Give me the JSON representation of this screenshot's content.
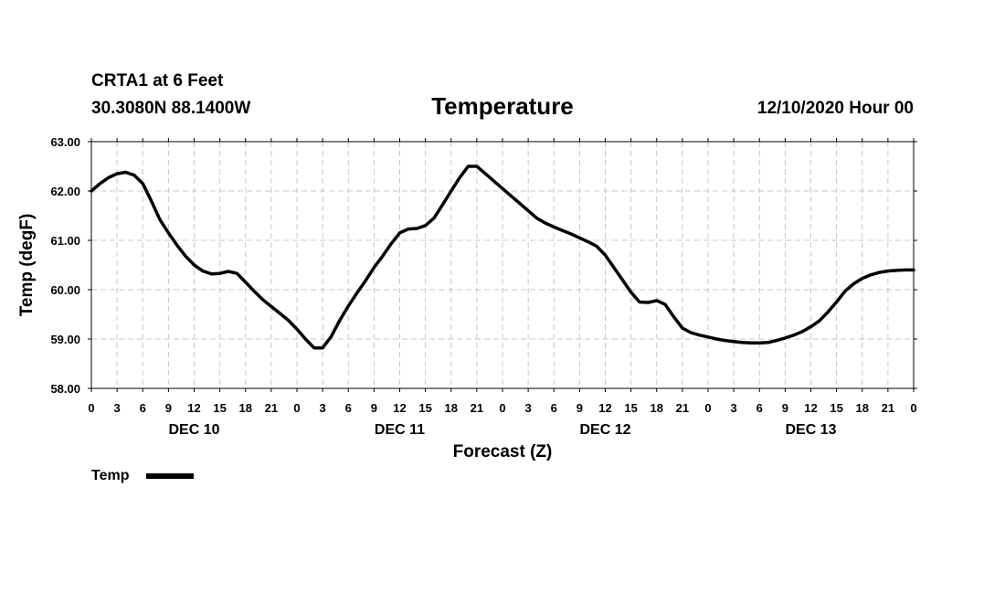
{
  "header": {
    "station": "CRTA1 at 6 Feet",
    "coords": "30.3080N 88.1400W",
    "title": "Temperature",
    "issued": "12/10/2020 Hour 00"
  },
  "legend": {
    "label": "Temp"
  },
  "chart_data": {
    "type": "line",
    "title": "Temperature",
    "xlabel": "Forecast (Z)",
    "ylabel": "Temp (degF)",
    "ylim": [
      58,
      63
    ],
    "xlim": [
      0,
      96
    ],
    "ytick_labels": [
      "58.00",
      "59.00",
      "60.00",
      "61.00",
      "62.00",
      "63.00"
    ],
    "xtick_labels": [
      "0",
      "3",
      "6",
      "9",
      "12",
      "15",
      "18",
      "21",
      "0",
      "3",
      "6",
      "9",
      "12",
      "15",
      "18",
      "21",
      "0",
      "3",
      "6",
      "9",
      "12",
      "15",
      "18",
      "21",
      "0",
      "3",
      "6",
      "9",
      "12",
      "15",
      "18",
      "21",
      "0"
    ],
    "day_labels": [
      "DEC 10",
      "DEC 11",
      "DEC 12",
      "DEC 13"
    ],
    "grid": true,
    "legend_position": "bottom-left",
    "series": [
      {
        "name": "Temp",
        "x": [
          0,
          1,
          2,
          3,
          4,
          5,
          6,
          7,
          8,
          9,
          10,
          11,
          12,
          13,
          14,
          15,
          16,
          17,
          18,
          19,
          20,
          21,
          22,
          23,
          24,
          25,
          26,
          27,
          28,
          29,
          30,
          31,
          32,
          33,
          34,
          35,
          36,
          37,
          38,
          39,
          40,
          41,
          42,
          43,
          44,
          45,
          46,
          47,
          48,
          49,
          50,
          51,
          52,
          53,
          54,
          55,
          56,
          57,
          58,
          59,
          60,
          61,
          62,
          63,
          64,
          65,
          66,
          67,
          68,
          69,
          70,
          71,
          72,
          73,
          74,
          75,
          76,
          77,
          78,
          79,
          80,
          81,
          82,
          83,
          84,
          85,
          86,
          87,
          88,
          89,
          90,
          91,
          92,
          93,
          94,
          95,
          96
        ],
        "values": [
          62.0,
          62.15,
          62.27,
          62.35,
          62.38,
          62.32,
          62.15,
          61.8,
          61.42,
          61.15,
          60.9,
          60.68,
          60.5,
          60.38,
          60.32,
          60.33,
          60.37,
          60.33,
          60.15,
          59.97,
          59.8,
          59.66,
          59.52,
          59.38,
          59.2,
          59.0,
          58.82,
          58.82,
          59.05,
          59.38,
          59.67,
          59.93,
          60.18,
          60.45,
          60.68,
          60.93,
          61.15,
          61.23,
          61.24,
          61.3,
          61.45,
          61.72,
          62.0,
          62.27,
          62.5,
          62.5,
          62.35,
          62.2,
          62.05,
          61.9,
          61.75,
          61.6,
          61.45,
          61.35,
          61.27,
          61.2,
          61.13,
          61.05,
          60.97,
          60.88,
          60.7,
          60.45,
          60.2,
          59.95,
          59.75,
          59.74,
          59.78,
          59.7,
          59.45,
          59.22,
          59.13,
          59.08,
          59.04,
          59.0,
          58.97,
          58.95,
          58.93,
          58.92,
          58.92,
          58.93,
          58.97,
          59.02,
          59.08,
          59.15,
          59.25,
          59.37,
          59.55,
          59.75,
          59.97,
          60.12,
          60.23,
          60.3,
          60.35,
          60.38,
          60.39,
          60.4,
          60.4
        ]
      }
    ]
  }
}
